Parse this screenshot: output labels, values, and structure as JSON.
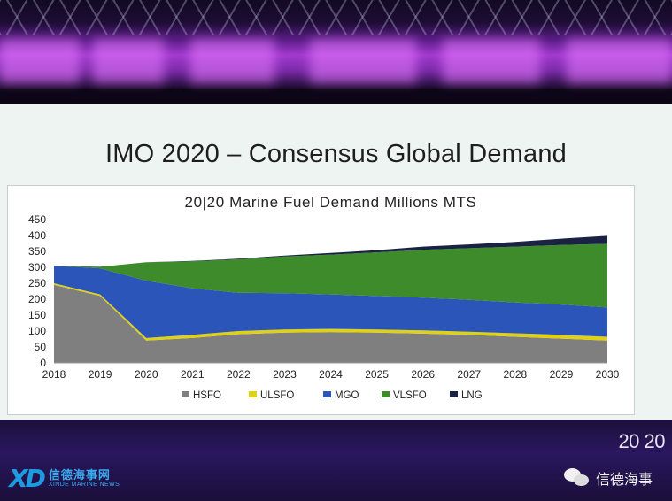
{
  "slide": {
    "title": "IMO 2020 – Consensus Global Demand"
  },
  "chart_data": {
    "type": "area",
    "title": "20|20 Marine Fuel Demand Millions MTS",
    "x": [
      "2018",
      "2019",
      "2020",
      "2021",
      "2022",
      "2023",
      "2024",
      "2025",
      "2026",
      "2027",
      "2028",
      "2029",
      "2030"
    ],
    "ylim": [
      0,
      450
    ],
    "yticks": [
      0,
      50,
      100,
      150,
      200,
      250,
      300,
      350,
      400,
      450
    ],
    "stacked": true,
    "grid": false,
    "legend_position": "bottom",
    "series": [
      {
        "name": "HSFO",
        "color": "#7f7f7f",
        "values": [
          245,
          210,
          70,
          78,
          90,
          95,
          97,
          95,
          92,
          88,
          82,
          76,
          70
        ]
      },
      {
        "name": "ULSFO",
        "color": "#dfd214",
        "values": [
          5,
          5,
          8,
          10,
          10,
          10,
          10,
          10,
          10,
          10,
          11,
          12,
          12
        ]
      },
      {
        "name": "MGO",
        "color": "#2c55b9",
        "values": [
          55,
          82,
          180,
          146,
          120,
          114,
          108,
          105,
          103,
          100,
          97,
          95,
          92
        ]
      },
      {
        "name": "VLSFO",
        "color": "#3d8b2a",
        "values": [
          0,
          5,
          58,
          85,
          105,
          115,
          125,
          137,
          150,
          162,
          175,
          187,
          200
        ]
      },
      {
        "name": "LNG",
        "color": "#1a2244",
        "values": [
          0,
          0,
          0,
          1,
          2,
          3,
          5,
          7,
          10,
          12,
          15,
          20,
          25
        ]
      }
    ]
  },
  "footer": {
    "year_mark": "20 20",
    "logo_left_mark": "XD",
    "logo_left_cn": "信德海事网",
    "logo_left_en": "XINDE MARINE NEWS",
    "logo_right_text": "信德海事"
  }
}
